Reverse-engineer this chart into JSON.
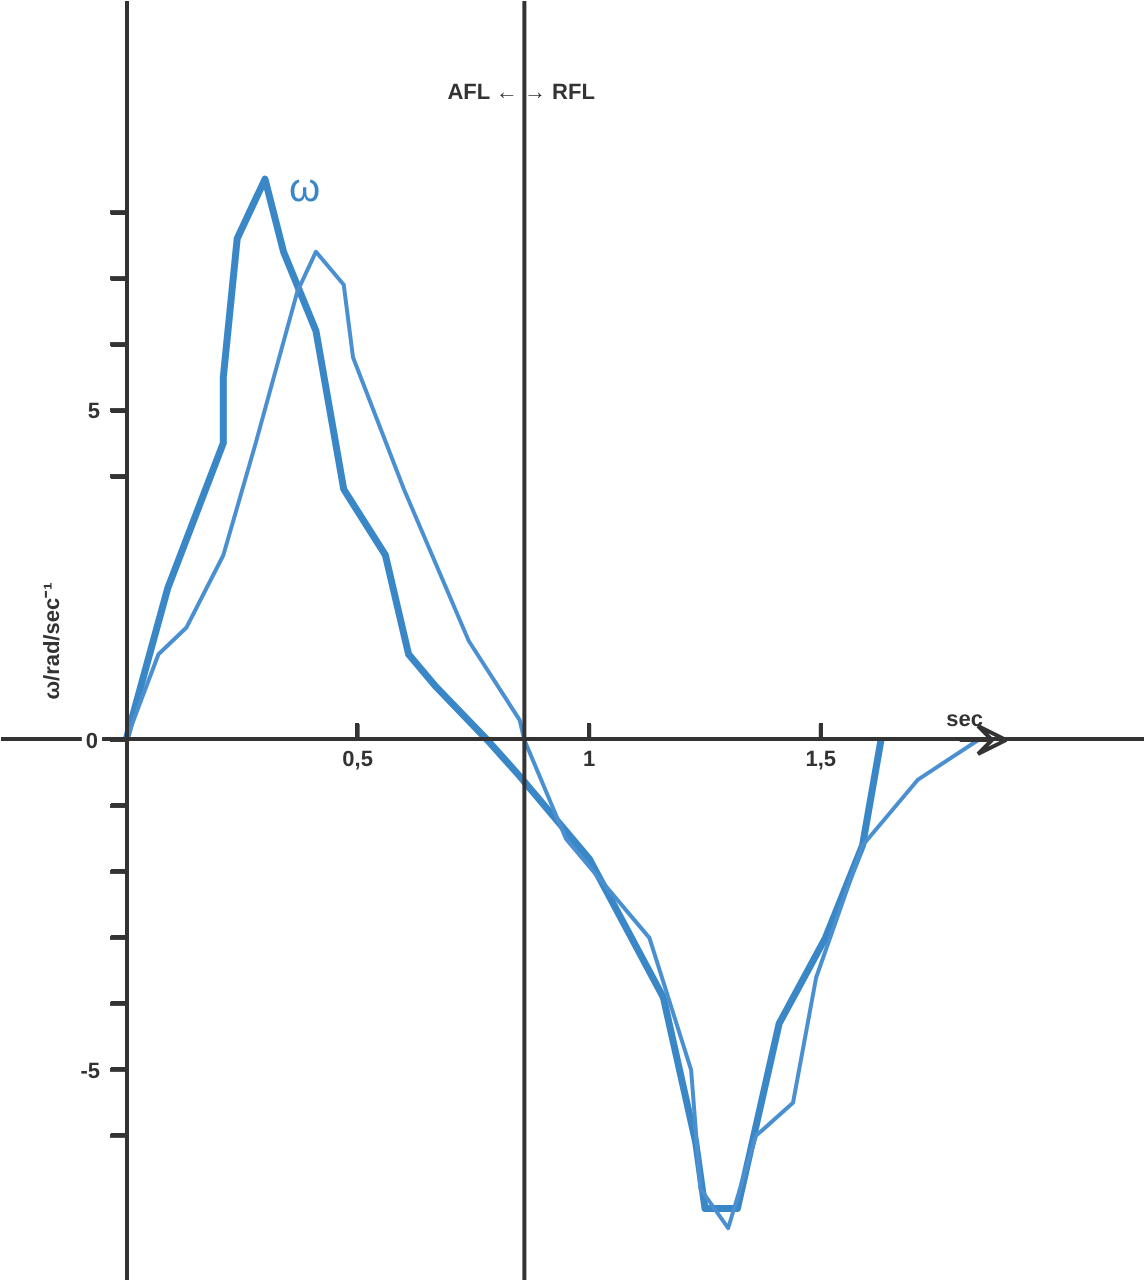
{
  "chart_data": {
    "type": "line",
    "xlabel": "sec",
    "ylabel": "ω/rad/sec⁻¹",
    "xlim": [
      -0.27,
      2.2
    ],
    "ylim": [
      -8.2,
      11.2
    ],
    "xticks": [
      {
        "value": 0.5,
        "label": "0,5"
      },
      {
        "value": 1,
        "label": "1"
      },
      {
        "value": 1.5,
        "label": "1,5"
      }
    ],
    "yticks": [
      {
        "value": -6,
        "label": null
      },
      -5,
      {
        "value": -4,
        "label": null
      },
      {
        "value": -3,
        "label": null
      },
      {
        "value": -2,
        "label": null
      },
      {
        "value": -1,
        "label": null
      },
      0,
      {
        "value": 4,
        "label": null
      },
      5,
      {
        "value": 6,
        "label": null
      },
      {
        "value": 7,
        "label": null
      },
      {
        "value": 8,
        "label": null
      }
    ],
    "grid": false,
    "marker": "none",
    "line_style": "solid",
    "series": [
      {
        "color": "#3a87c8",
        "x": [
          0,
          0.09,
          0.21,
          0.21,
          0.24,
          0.3,
          0.34,
          0.41,
          0.47,
          0.56,
          0.61,
          0.67,
          0.78,
          0.85,
          1.0,
          1.16,
          1.23,
          1.25,
          1.32,
          1.41,
          1.51,
          1.59,
          1.63
        ],
        "values": [
          0,
          2.3,
          4.5,
          5.5,
          7.6,
          8.5,
          7.4,
          6.2,
          3.8,
          2.8,
          1.3,
          0.8,
          0,
          -0.55,
          -1.8,
          -3.9,
          -6.1,
          -7.1,
          -7.1,
          -4.3,
          -3.0,
          -1.6,
          0
        ]
      },
      {
        "color": "#4a90d0",
        "x": [
          0,
          0.07,
          0.13,
          0.21,
          0.28,
          0.37,
          0.41,
          0.47,
          0.49,
          0.6,
          0.74,
          0.85,
          0.86,
          0.95,
          1.13,
          1.22,
          1.24,
          1.3,
          1.36,
          1.44,
          1.49,
          1.59,
          1.71,
          1.84
        ],
        "values": [
          0,
          1.3,
          1.7,
          2.8,
          4.5,
          6.8,
          7.4,
          6.9,
          5.8,
          3.8,
          1.5,
          0.3,
          0,
          -1.5,
          -3.0,
          -5.0,
          -6.8,
          -7.4,
          -6.0,
          -5.5,
          -3.6,
          -1.6,
          -0.6,
          0
        ]
      }
    ],
    "ref_lines": [
      {
        "axis": "x",
        "value": 0.86,
        "label": "AFL ←  → RFL",
        "color": "#333333"
      }
    ],
    "annotations": [
      "ω"
    ]
  }
}
